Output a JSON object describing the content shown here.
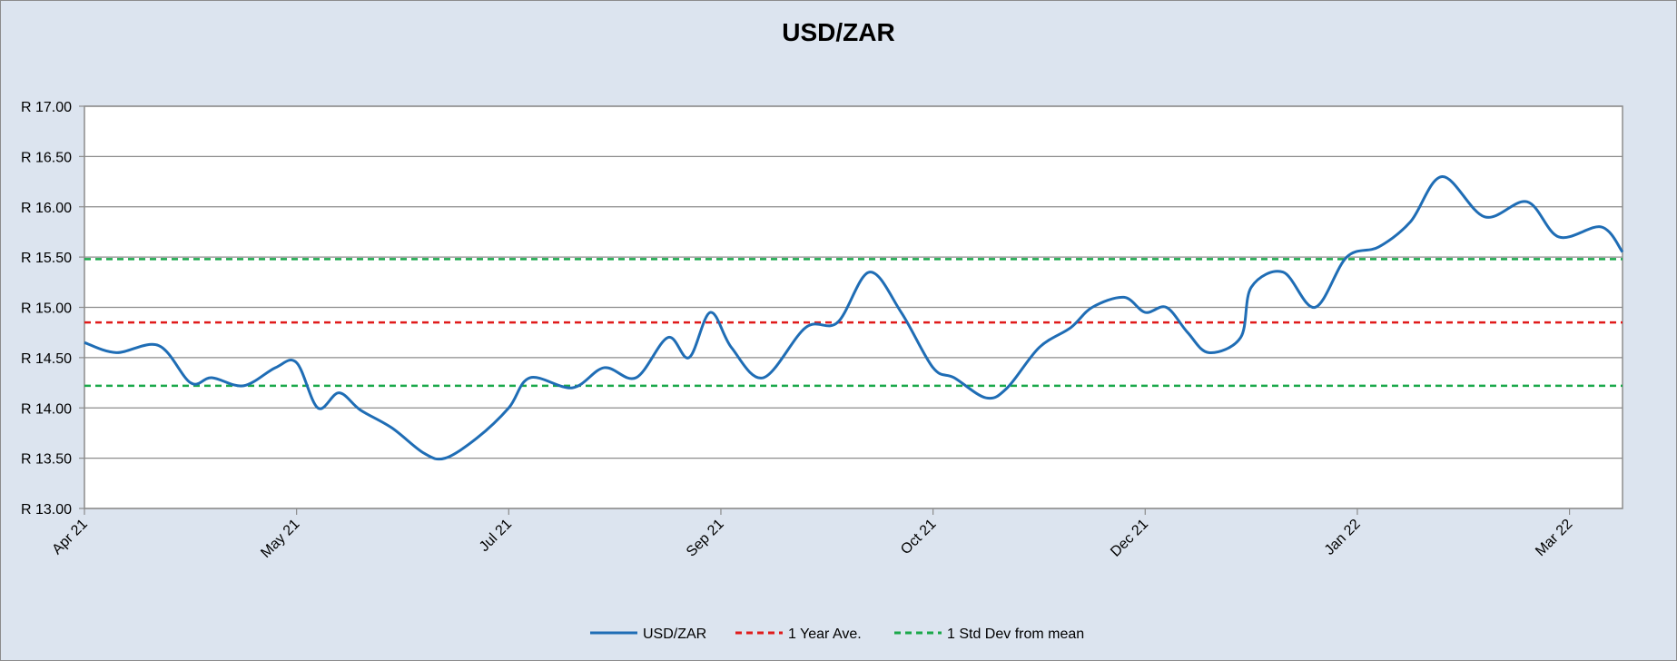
{
  "chart_data": {
    "type": "line",
    "title": "USD/ZAR",
    "xlabel": "",
    "ylabel": "",
    "ylim": [
      13.0,
      17.0
    ],
    "y_ticks": [
      "R 13.00",
      "R 13.50",
      "R 14.00",
      "R 14.50",
      "R 15.00",
      "R 15.50",
      "R 16.00",
      "R 16.50",
      "R 17.00"
    ],
    "y_tick_values": [
      13.0,
      13.5,
      14.0,
      14.5,
      15.0,
      15.5,
      16.0,
      16.5,
      17.0
    ],
    "x_ticks": [
      "Apr 21",
      "May 21",
      "Jul 21",
      "Sep 21",
      "Oct 21",
      "Dec 21",
      "Jan 22",
      "Mar 22"
    ],
    "grid": true,
    "legend_position": "bottom",
    "series": [
      {
        "name": "USD/ZAR",
        "color": "#1f6db5",
        "style": "solid",
        "x": [
          0.0,
          0.15,
          0.35,
          0.5,
          0.6,
          0.75,
          0.9,
          1.0,
          1.1,
          1.2,
          1.3,
          1.45,
          1.6,
          1.7,
          1.85,
          2.0,
          2.1,
          2.3,
          2.45,
          2.6,
          2.75,
          2.85,
          2.95,
          3.05,
          3.2,
          3.4,
          3.55,
          3.7,
          3.85,
          4.0,
          4.1,
          4.25,
          4.35,
          4.5,
          4.65,
          4.75,
          4.9,
          5.0,
          5.1,
          5.2,
          5.3,
          5.45,
          5.5,
          5.65,
          5.8,
          5.95,
          6.1,
          6.25,
          6.4,
          6.6,
          6.8,
          6.95,
          7.15,
          7.25
        ],
        "y": [
          14.65,
          14.55,
          14.62,
          14.25,
          14.3,
          14.22,
          14.4,
          14.45,
          14.0,
          14.15,
          13.98,
          13.8,
          13.55,
          13.5,
          13.7,
          14.0,
          14.3,
          14.2,
          14.4,
          14.3,
          14.7,
          14.5,
          14.95,
          14.6,
          14.3,
          14.8,
          14.85,
          15.35,
          14.95,
          14.4,
          14.3,
          14.1,
          14.2,
          14.6,
          14.8,
          15.0,
          15.1,
          14.95,
          15.0,
          14.75,
          14.55,
          14.7,
          15.2,
          15.35,
          15.0,
          15.5,
          15.6,
          15.85,
          16.3,
          15.9,
          16.05,
          15.7,
          15.8,
          15.55
        ]
      },
      {
        "name": "1 Year Ave.",
        "color": "#e01b1b",
        "style": "dashed",
        "value": 14.85
      },
      {
        "name": "1 Std Dev from mean",
        "color": "#1aa84a",
        "style": "dashed",
        "values": [
          15.48,
          14.22
        ]
      }
    ]
  }
}
